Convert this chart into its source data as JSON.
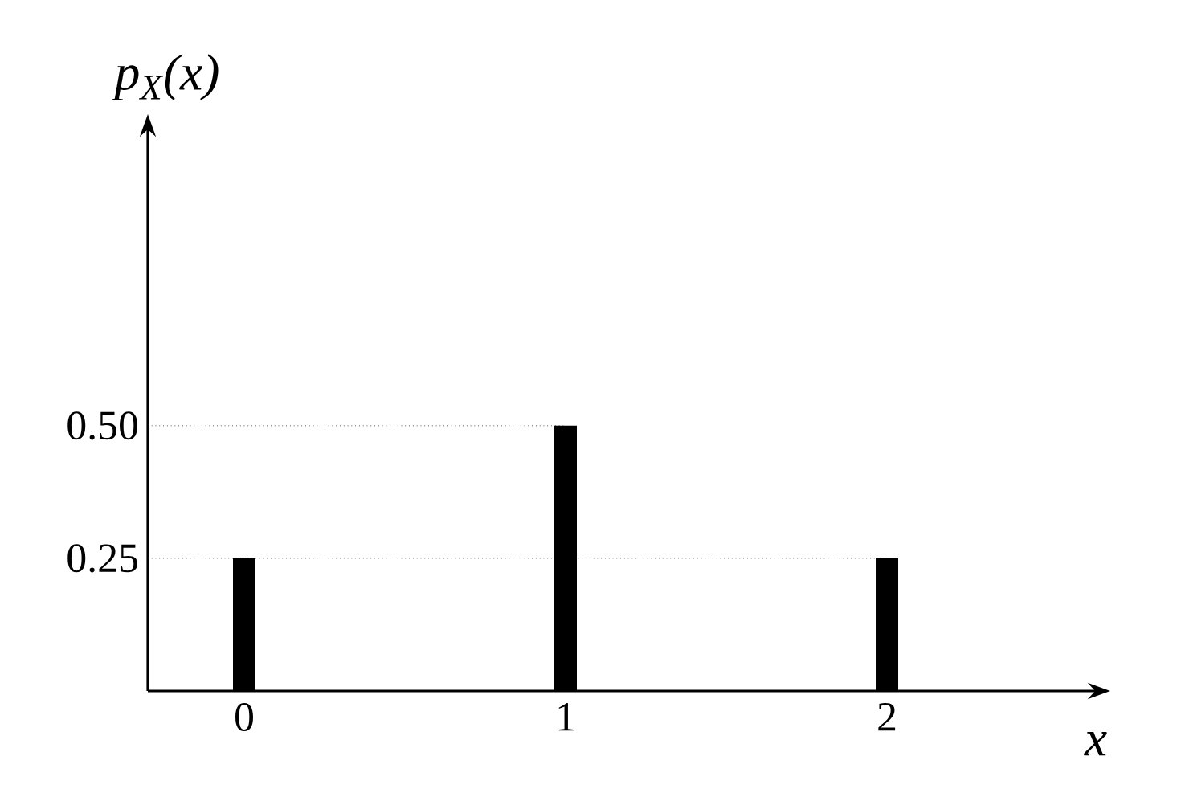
{
  "chart_data": {
    "type": "bar",
    "xlabel": "x",
    "ylabel": "p$_{X}$(x)",
    "x": [
      0,
      1,
      2
    ],
    "values": [
      0.25,
      0.5,
      0.25
    ],
    "color": "#000000",
    "xlim": [
      -0.3,
      2.65
    ],
    "ylim": [
      0,
      1.06
    ],
    "xticks": [
      0,
      1,
      2
    ],
    "yticks": [
      0.25,
      {
        "value": 0.5,
        "label": "0.50"
      }
    ],
    "ref_lines": [
      {
        "axis": "y",
        "value": 0.25,
        "line_style": "dotted"
      },
      {
        "axis": "y",
        "value": 0.5,
        "line_style": "dotted"
      }
    ],
    "grid": false
  }
}
